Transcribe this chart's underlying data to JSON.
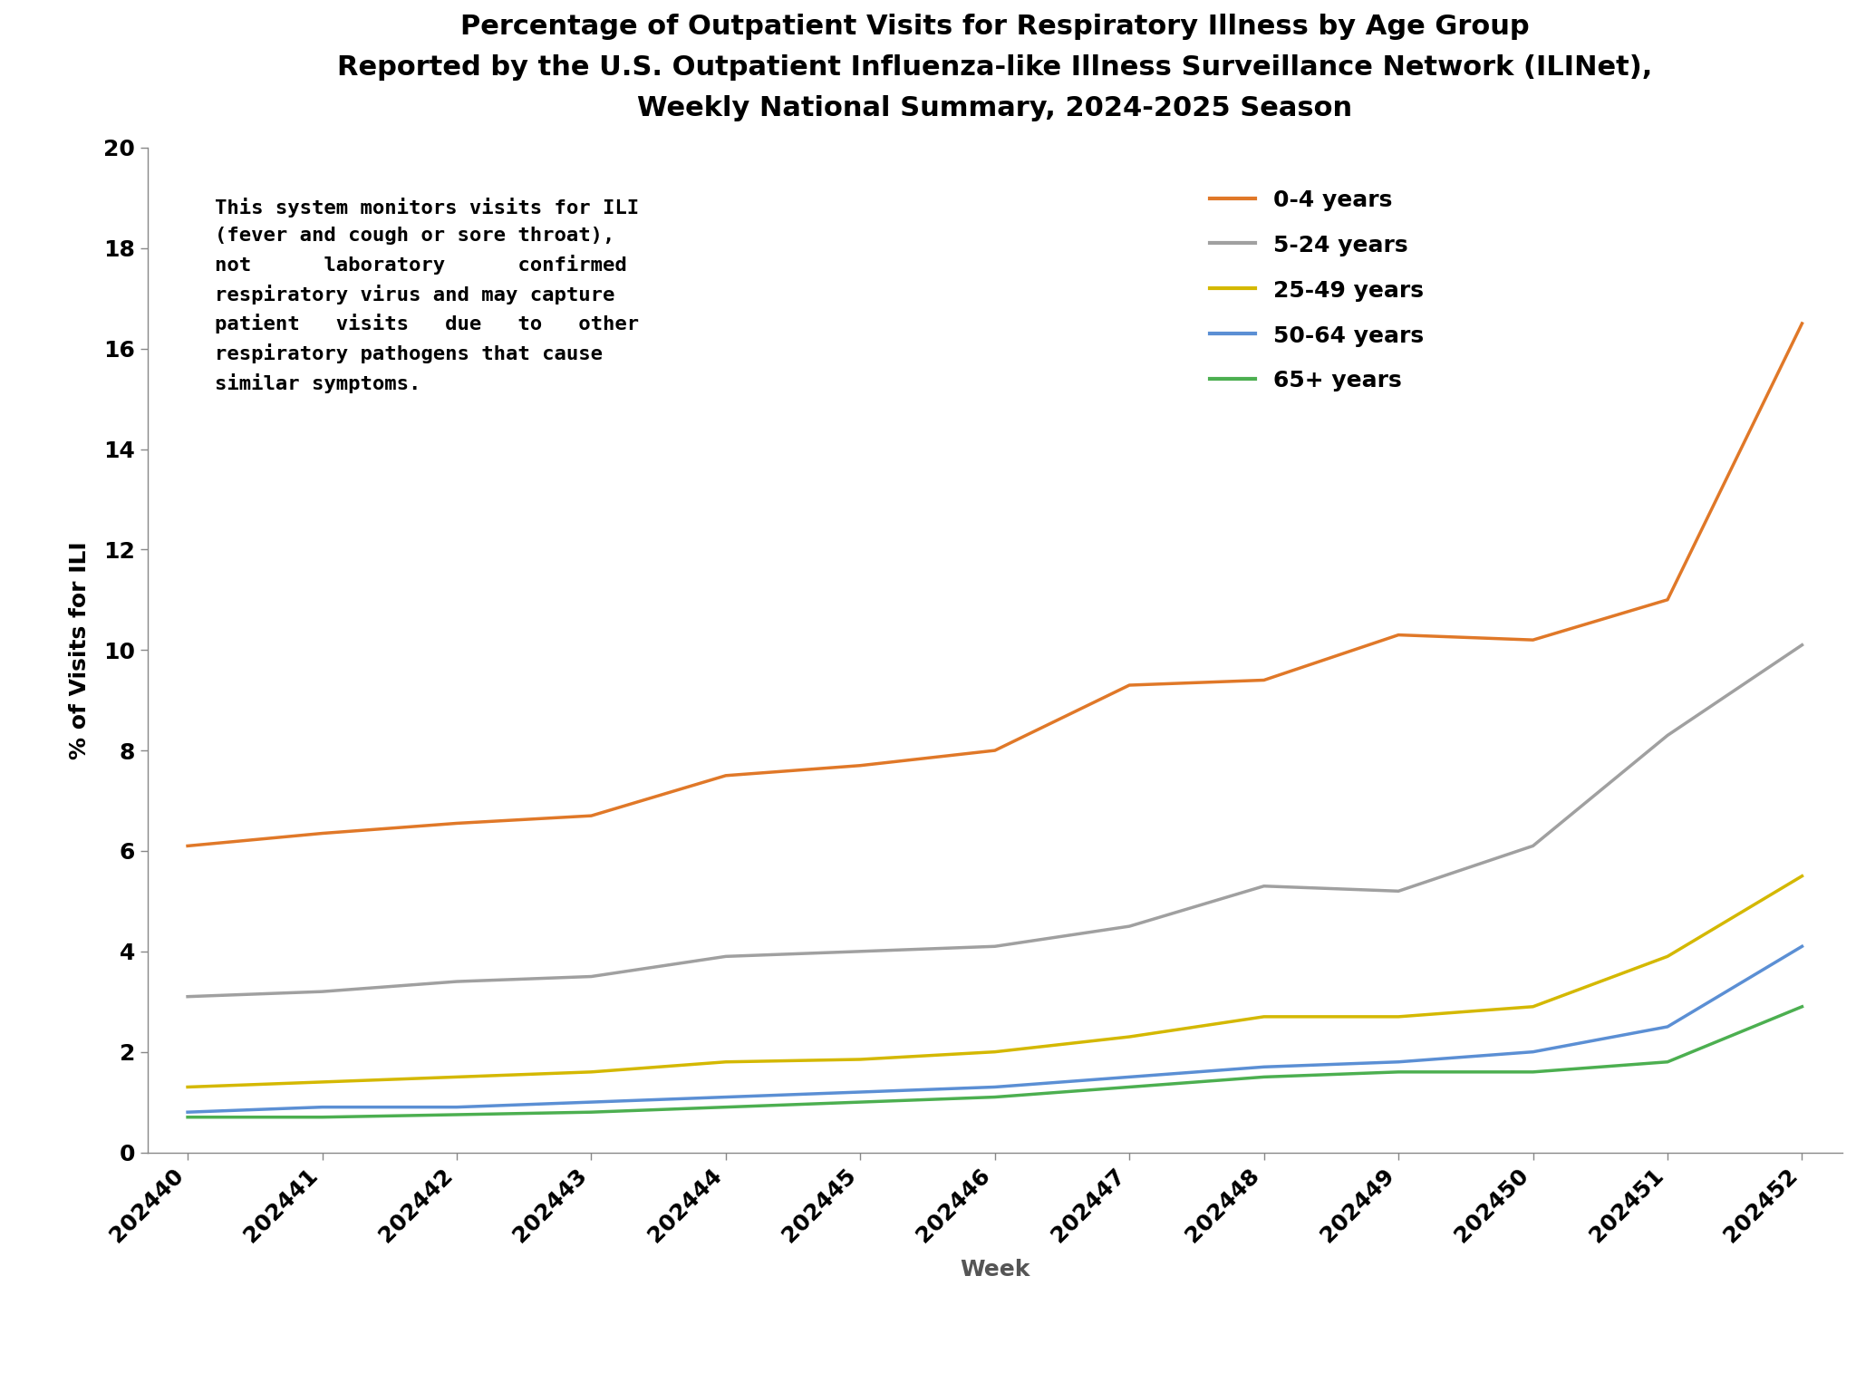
{
  "title_line1": "Percentage of Outpatient Visits for Respiratory Illness by Age Group",
  "title_line2": "Reported by the U.S. Outpatient Influenza-like Illness Surveillance Network (ILINet),",
  "title_line3": "Weekly National Summary, 2024-2025 Season",
  "xlabel": "Week",
  "ylabel": "% of Visits for ILI",
  "weeks": [
    "202440",
    "202441",
    "202442",
    "202443",
    "202444",
    "202445",
    "202446",
    "202447",
    "202448",
    "202449",
    "202450",
    "202451",
    "202452"
  ],
  "series": [
    {
      "label": "0-4 years",
      "color": "#E07828",
      "values": [
        6.1,
        6.35,
        6.55,
        6.7,
        7.5,
        7.7,
        8.0,
        9.3,
        9.4,
        10.3,
        10.2,
        11.0,
        16.5
      ]
    },
    {
      "label": "5-24 years",
      "color": "#A0A0A0",
      "values": [
        3.1,
        3.2,
        3.4,
        3.5,
        3.9,
        4.0,
        4.1,
        4.5,
        5.3,
        5.2,
        6.1,
        8.3,
        10.1
      ]
    },
    {
      "label": "25-49 years",
      "color": "#D4B800",
      "values": [
        1.3,
        1.4,
        1.5,
        1.6,
        1.8,
        1.85,
        2.0,
        2.3,
        2.7,
        2.7,
        2.9,
        3.9,
        5.5
      ]
    },
    {
      "label": "50-64 years",
      "color": "#5B8FD4",
      "values": [
        0.8,
        0.9,
        0.9,
        1.0,
        1.1,
        1.2,
        1.3,
        1.5,
        1.7,
        1.8,
        2.0,
        2.5,
        4.1
      ]
    },
    {
      "label": "65+ years",
      "color": "#4CAF50",
      "values": [
        0.7,
        0.7,
        0.75,
        0.8,
        0.9,
        1.0,
        1.1,
        1.3,
        1.5,
        1.6,
        1.6,
        1.8,
        2.9
      ]
    }
  ],
  "ylim": [
    0,
    20
  ],
  "yticks": [
    0,
    2,
    4,
    6,
    8,
    10,
    12,
    14,
    16,
    18,
    20
  ],
  "annotation_line1": "This system monitors visits for ILI",
  "annotation_line2": "(fever and cough or sore throat),",
  "annotation_line3": "not      laboratory      confirmed",
  "annotation_line4": "respiratory virus and may capture",
  "annotation_line5": "patient   visits   due   to   other",
  "annotation_line6": "respiratory pathogens that cause",
  "annotation_line7": "similar symptoms.",
  "background_color": "#ffffff",
  "title_fontsize": 22,
  "axis_label_fontsize": 18,
  "tick_fontsize": 18,
  "legend_fontsize": 18,
  "annotation_fontsize": 16,
  "linewidth": 2.5
}
